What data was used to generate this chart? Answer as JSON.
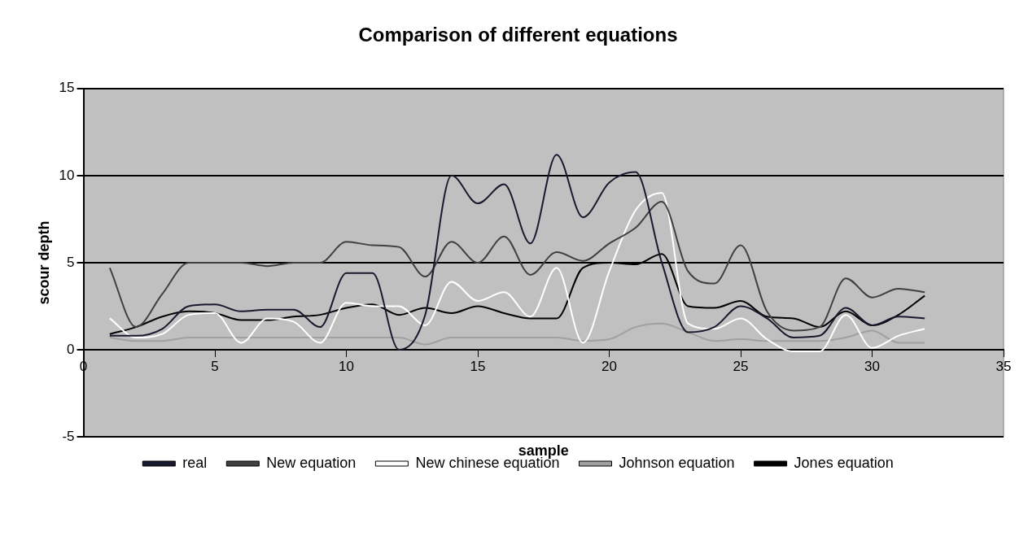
{
  "chart_data": {
    "type": "line",
    "title": "Comparison of different equations",
    "xlabel": "sample",
    "ylabel": "scour depth",
    "x": [
      1,
      2,
      3,
      4,
      5,
      6,
      7,
      8,
      9,
      10,
      11,
      12,
      13,
      14,
      15,
      16,
      17,
      18,
      19,
      20,
      21,
      22,
      23,
      24,
      25,
      26,
      27,
      28,
      29,
      30,
      31,
      32
    ],
    "series": [
      {
        "name": "real",
        "color": "#1a1a2e",
        "values": [
          0.8,
          0.8,
          1.2,
          2.5,
          2.6,
          2.2,
          2.3,
          2.3,
          1.3,
          4.4,
          4.4,
          0,
          2.0,
          10,
          8.4,
          9.5,
          6.1,
          11.2,
          7.6,
          9.6,
          10.2,
          5.0,
          1.0,
          1.3,
          2.5,
          1.8,
          0.7,
          0.8,
          2.4,
          1.4,
          1.9,
          1.8
        ]
      },
      {
        "name": "New equation",
        "color": "#404040",
        "values": [
          4.7,
          1.3,
          3.2,
          5.0,
          5.0,
          5.0,
          4.8,
          5.0,
          5.0,
          6.2,
          6.0,
          5.9,
          4.2,
          6.2,
          5.0,
          6.5,
          4.3,
          5.6,
          5.1,
          6.1,
          7.0,
          8.5,
          4.5,
          3.8,
          6.0,
          2.2,
          1.1,
          1.3,
          4.1,
          3.0,
          3.5,
          3.3
        ]
      },
      {
        "name": "New chinese equation",
        "color": "#ffffff",
        "values": [
          1.8,
          0.7,
          0.9,
          2.0,
          2.1,
          0.4,
          1.8,
          1.6,
          0.4,
          2.7,
          2.5,
          2.5,
          1.4,
          3.9,
          2.8,
          3.3,
          1.9,
          4.7,
          0.4,
          4.5,
          8.0,
          9.0,
          1.5,
          1.2,
          1.8,
          0.6,
          -0.1,
          -0.1,
          2.0,
          0.1,
          0.8,
          1.2
        ]
      },
      {
        "name": "Johnson equation",
        "color": "#a0a0a0",
        "values": [
          0.7,
          0.5,
          0.5,
          0.7,
          0.7,
          0.7,
          0.7,
          0.7,
          0.7,
          0.7,
          0.7,
          0.7,
          0.3,
          0.7,
          0.7,
          0.7,
          0.7,
          0.7,
          0.5,
          0.6,
          1.3,
          1.5,
          1.0,
          0.5,
          0.6,
          0.5,
          0.5,
          0.5,
          0.7,
          1.1,
          0.4,
          0.4
        ]
      },
      {
        "name": "Jones equation",
        "color": "#000000",
        "values": [
          0.9,
          1.3,
          1.9,
          2.2,
          2.1,
          1.7,
          1.7,
          1.9,
          2.0,
          2.4,
          2.6,
          2.0,
          2.4,
          2.1,
          2.5,
          2.1,
          1.8,
          1.8,
          4.7,
          5.0,
          4.9,
          5.5,
          2.5,
          2.4,
          2.8,
          1.9,
          1.8,
          1.3,
          2.2,
          1.4,
          2.0,
          3.1
        ]
      }
    ],
    "xlim": [
      0,
      35
    ],
    "xticks": [
      0,
      5,
      10,
      15,
      20,
      25,
      30,
      35
    ],
    "ylim": [
      -5,
      15
    ],
    "yticks": [
      -5,
      0,
      5,
      10,
      15
    ],
    "grid": "y",
    "legend": "bottom",
    "marker": "none",
    "line_style": "solid"
  }
}
